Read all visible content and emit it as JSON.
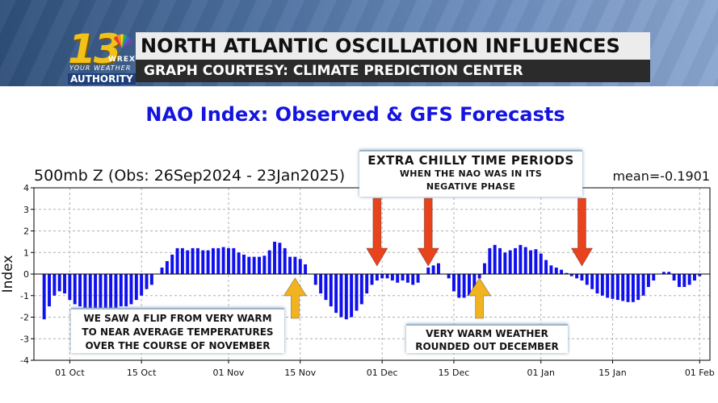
{
  "header": {
    "title": "NORTH ATLANTIC OSCILLATION INFLUENCES",
    "subtitle": "GRAPH COURTESY: CLIMATE PREDICTION CENTER",
    "logo": {
      "number": "13",
      "station": "WREX",
      "tagline": "YOUR WEATHER",
      "authority": "AUTHORITY"
    }
  },
  "chart_data": {
    "type": "bar",
    "title": "NAO Index: Observed & GFS Forecasts",
    "subtitle": "500mb Z (Obs: 26Sep2024 - 23Jan2025)",
    "annotation_mean": "mean=-0.1901",
    "ylabel": "Index",
    "ylim": [
      -4,
      4
    ],
    "yticks": [
      -4,
      -3,
      -2,
      -1,
      0,
      1,
      2,
      3,
      4
    ],
    "x_start": "2024-09-26",
    "xlim": [
      "2024-09-24",
      "2025-02-03"
    ],
    "xtick_labels": [
      "01 Oct",
      "15 Oct",
      "01 Nov",
      "15 Nov",
      "01 Dec",
      "15 Dec",
      "01 Jan",
      "15 Jan",
      "01 Feb"
    ],
    "xtick_dates": [
      "2024-10-01",
      "2024-10-15",
      "2024-11-01",
      "2024-11-15",
      "2024-12-01",
      "2024-12-15",
      "2025-01-01",
      "2025-01-15",
      "2025-02-01"
    ],
    "grid": true,
    "bar_color": "#1010ee",
    "values": [
      -2.1,
      -1.5,
      -1.0,
      -0.8,
      -0.9,
      -1.2,
      -1.4,
      -1.5,
      -1.6,
      -1.6,
      -1.6,
      -1.6,
      -1.6,
      -1.6,
      -1.6,
      -1.5,
      -1.5,
      -1.4,
      -1.2,
      -1.0,
      -0.7,
      -0.5,
      0.0,
      0.3,
      0.6,
      0.9,
      1.2,
      1.2,
      1.1,
      1.2,
      1.2,
      1.1,
      1.1,
      1.2,
      1.2,
      1.25,
      1.2,
      1.2,
      1.0,
      0.9,
      0.8,
      0.8,
      0.8,
      0.85,
      1.1,
      1.5,
      1.45,
      1.2,
      0.8,
      0.8,
      0.7,
      0.45,
      0.0,
      -0.5,
      -0.9,
      -1.2,
      -1.5,
      -1.8,
      -2.0,
      -2.1,
      -2.0,
      -1.7,
      -1.4,
      -0.9,
      -0.5,
      -0.3,
      -0.2,
      -0.2,
      -0.3,
      -0.4,
      -0.3,
      -0.4,
      -0.5,
      -0.4,
      0.0,
      0.3,
      0.4,
      0.5,
      0.0,
      -0.2,
      -0.8,
      -1.1,
      -1.1,
      -1.0,
      -0.7,
      -0.2,
      0.5,
      1.2,
      1.35,
      1.2,
      1.0,
      1.1,
      1.2,
      1.35,
      1.25,
      1.1,
      1.15,
      0.95,
      0.65,
      0.4,
      0.3,
      0.2,
      0.05,
      -0.1,
      -0.2,
      -0.3,
      -0.5,
      -0.7,
      -0.9,
      -1.0,
      -1.1,
      -1.15,
      -1.2,
      -1.25,
      -1.3,
      -1.3,
      -1.2,
      -1.0,
      -0.6,
      -0.3,
      0.0,
      0.1,
      0.1,
      -0.3,
      -0.6,
      -0.6,
      -0.5,
      -0.3,
      -0.1
    ],
    "annotations": [
      {
        "id": "chilly",
        "line1": "EXTRA CHILLY TIME PERIODS",
        "line2": "WHEN THE NAO WAS IN ITS",
        "line3": "NEGATIVE PHASE"
      },
      {
        "id": "flip",
        "line1": "WE SAW A FLIP FROM VERY WARM",
        "line2": "TO NEAR AVERAGE TEMPERATURES",
        "line3": "OVER THE COURSE OF NOVEMBER"
      },
      {
        "id": "warm",
        "line1": "VERY WARM WEATHER",
        "line2": "ROUNDED OUT DECEMBER"
      }
    ],
    "arrows": [
      {
        "color": "#e8431c",
        "direction": "down",
        "date": "2024-11-30"
      },
      {
        "color": "#e8431c",
        "direction": "down",
        "date": "2024-12-10"
      },
      {
        "color": "#e8431c",
        "direction": "down",
        "date": "2025-01-09"
      },
      {
        "color": "#f2b320",
        "direction": "up",
        "date": "2024-11-14"
      },
      {
        "color": "#f2b320",
        "direction": "up",
        "date": "2024-12-20"
      }
    ]
  }
}
